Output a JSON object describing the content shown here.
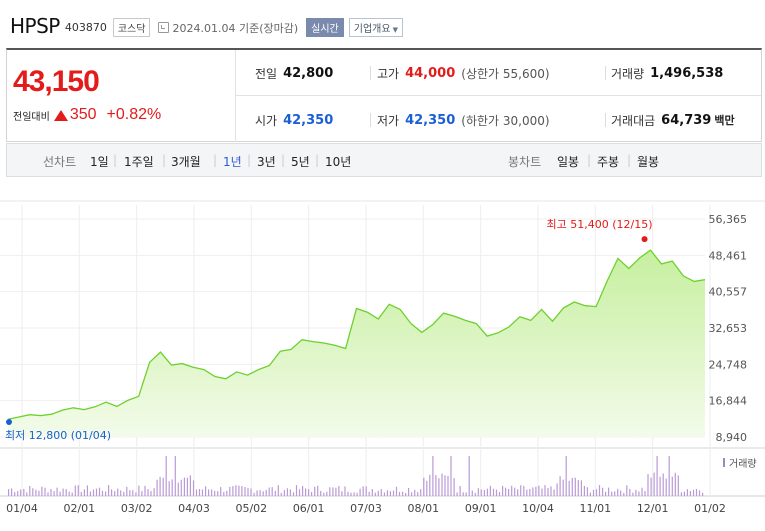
{
  "header": {
    "name": "HPSP",
    "code": "403870",
    "market": "코스닥",
    "date": "2024.01.04",
    "date_suffix": "기준(장마감)",
    "realtime": "실시간",
    "company_info": "기업개요"
  },
  "summary": {
    "price": "43,150",
    "change_label": "전일대비",
    "change_amount": "350",
    "change_pct": "+0.82%",
    "prev_close": {
      "label": "전일",
      "value": "42,800"
    },
    "high": {
      "label": "고가",
      "value": "44,000",
      "sub": "(상한가 55,600)"
    },
    "volume": {
      "label": "거래량",
      "value": "1,496,538"
    },
    "open": {
      "label": "시가",
      "value": "42,350"
    },
    "low": {
      "label": "저가",
      "value": "42,350",
      "sub": "(하한가 30,000)"
    },
    "amount": {
      "label": "거래대금",
      "value": "64,739",
      "unit": "백만"
    }
  },
  "periods": {
    "label": "선차트",
    "items": [
      "1일",
      "1주일",
      "3개월",
      "1년",
      "3년",
      "5년",
      "10년"
    ],
    "selected": "1년",
    "candle_label": "봉차트",
    "candle_items": [
      "일봉",
      "주봉",
      "월봉"
    ]
  },
  "colors": {
    "up": "#e41b1b",
    "down": "#1b5fd4",
    "line": "#6cd12d",
    "volume": "#b99ad6"
  },
  "chart_data": {
    "type": "area",
    "x_ticks": [
      "01/04",
      "02/01",
      "03/02",
      "04/03",
      "05/02",
      "06/01",
      "07/03",
      "08/01",
      "09/01",
      "10/04",
      "11/01",
      "12/01",
      "01/02"
    ],
    "y_ticks": [
      "56,365",
      "48,461",
      "40,557",
      "32,653",
      "24,748",
      "16,844",
      "8,940"
    ],
    "ylim": [
      8940,
      56365
    ],
    "high_label": "최고 51,400 (12/15)",
    "low_label": "최저 12,800 (01/04)",
    "volume_label": "거래량",
    "grid": true,
    "series": [
      {
        "x": "01/04",
        "y": 12800
      },
      {
        "x": "01/09",
        "y": 13300
      },
      {
        "x": "01/13",
        "y": 13800
      },
      {
        "x": "01/18",
        "y": 13600
      },
      {
        "x": "01/24",
        "y": 13900
      },
      {
        "x": "02/01",
        "y": 14800
      },
      {
        "x": "02/07",
        "y": 15300
      },
      {
        "x": "02/14",
        "y": 14900
      },
      {
        "x": "02/21",
        "y": 15500
      },
      {
        "x": "02/27",
        "y": 16500
      },
      {
        "x": "03/02",
        "y": 15600
      },
      {
        "x": "03/08",
        "y": 16900
      },
      {
        "x": "03/14",
        "y": 17800
      },
      {
        "x": "03/20",
        "y": 25200
      },
      {
        "x": "03/24",
        "y": 27400
      },
      {
        "x": "03/30",
        "y": 24600
      },
      {
        "x": "04/03",
        "y": 24900
      },
      {
        "x": "04/10",
        "y": 24100
      },
      {
        "x": "04/14",
        "y": 23600
      },
      {
        "x": "04/20",
        "y": 22100
      },
      {
        "x": "04/26",
        "y": 21600
      },
      {
        "x": "05/02",
        "y": 23100
      },
      {
        "x": "05/09",
        "y": 22400
      },
      {
        "x": "05/15",
        "y": 23600
      },
      {
        "x": "05/22",
        "y": 24500
      },
      {
        "x": "05/26",
        "y": 27600
      },
      {
        "x": "06/01",
        "y": 28000
      },
      {
        "x": "06/08",
        "y": 30100
      },
      {
        "x": "06/14",
        "y": 29700
      },
      {
        "x": "06/20",
        "y": 29400
      },
      {
        "x": "06/27",
        "y": 28900
      },
      {
        "x": "07/03",
        "y": 28200
      },
      {
        "x": "07/07",
        "y": 36900
      },
      {
        "x": "07/14",
        "y": 36100
      },
      {
        "x": "07/20",
        "y": 34600
      },
      {
        "x": "07/26",
        "y": 37800
      },
      {
        "x": "08/01",
        "y": 36700
      },
      {
        "x": "08/07",
        "y": 33600
      },
      {
        "x": "08/14",
        "y": 31700
      },
      {
        "x": "08/21",
        "y": 33400
      },
      {
        "x": "08/25",
        "y": 35900
      },
      {
        "x": "09/01",
        "y": 35200
      },
      {
        "x": "09/07",
        "y": 34300
      },
      {
        "x": "09/13",
        "y": 33600
      },
      {
        "x": "09/20",
        "y": 30900
      },
      {
        "x": "09/26",
        "y": 31600
      },
      {
        "x": "10/04",
        "y": 32900
      },
      {
        "x": "10/12",
        "y": 35100
      },
      {
        "x": "10/18",
        "y": 34300
      },
      {
        "x": "10/24",
        "y": 36700
      },
      {
        "x": "11/01",
        "y": 34100
      },
      {
        "x": "11/07",
        "y": 37000
      },
      {
        "x": "11/13",
        "y": 38300
      },
      {
        "x": "11/20",
        "y": 37500
      },
      {
        "x": "11/27",
        "y": 37300
      },
      {
        "x": "12/01",
        "y": 42800
      },
      {
        "x": "12/05",
        "y": 47800
      },
      {
        "x": "12/08",
        "y": 45600
      },
      {
        "x": "12/11",
        "y": 47900
      },
      {
        "x": "12/15",
        "y": 49600
      },
      {
        "x": "12/19",
        "y": 46600
      },
      {
        "x": "12/22",
        "y": 47200
      },
      {
        "x": "12/27",
        "y": 44000
      },
      {
        "x": "01/02",
        "y": 42800
      },
      {
        "x": "01/04",
        "y": 43150
      }
    ]
  }
}
